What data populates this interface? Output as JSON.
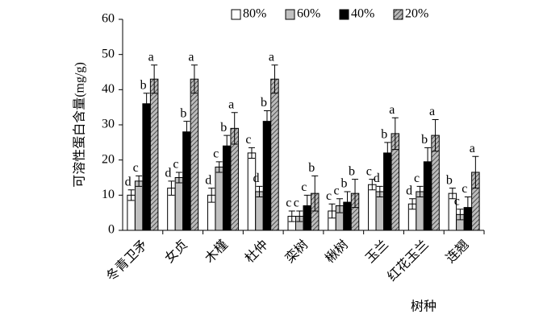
{
  "chart_data": {
    "type": "bar",
    "y_label": "可溶性蛋白含量(mg/g)",
    "x_label": "树种",
    "categories": [
      "冬青卫矛",
      "女贞",
      "木槿",
      "杜仲",
      "栾树",
      "楸树",
      "玉兰",
      "红花玉兰",
      "连翘"
    ],
    "series": [
      {
        "name": "80%",
        "color": "#ffffff",
        "hatch": false,
        "values": [
          10,
          12,
          10,
          22,
          4,
          5.5,
          13,
          7.5,
          10.5
        ],
        "errors": [
          1.5,
          2,
          2,
          1.5,
          1.5,
          2,
          1.5,
          1.5,
          1.5
        ],
        "letters": [
          "d",
          "d",
          "d",
          "c",
          "c",
          "c",
          "c",
          "d",
          "b"
        ]
      },
      {
        "name": "60%",
        "color": "#c0c0c0",
        "hatch": false,
        "values": [
          14,
          15,
          18,
          11,
          4,
          7,
          11,
          11,
          4.5
        ],
        "errors": [
          1.5,
          1.5,
          1.5,
          1.5,
          1.5,
          2,
          1.5,
          1.5,
          1.5
        ],
        "letters": [
          "c",
          "c",
          "c",
          "d",
          "c",
          "c",
          "d",
          "c",
          "c"
        ]
      },
      {
        "name": "40%",
        "color": "#000000",
        "hatch": false,
        "values": [
          36,
          28,
          24,
          31,
          7,
          8,
          22,
          19.5,
          6.5
        ],
        "errors": [
          3,
          3,
          3,
          3,
          3,
          3,
          3,
          4,
          3
        ],
        "letters": [
          "b",
          "b",
          "b",
          "b",
          "c",
          "b",
          "b",
          "b",
          "c"
        ]
      },
      {
        "name": "20%",
        "color": "#808080",
        "hatch": true,
        "values": [
          43,
          43,
          29,
          43,
          10.5,
          10.5,
          27.5,
          27,
          16.5
        ],
        "errors": [
          4,
          4,
          4.5,
          4,
          5,
          4,
          4.5,
          4.5,
          4.5
        ],
        "letters": [
          "a",
          "a",
          "a",
          "a",
          "b",
          "b",
          "a",
          "a",
          "a"
        ]
      }
    ],
    "ylim": [
      0,
      60
    ],
    "yticks": [
      0,
      10,
      20,
      30,
      40,
      50,
      60
    ],
    "legend": "top"
  }
}
